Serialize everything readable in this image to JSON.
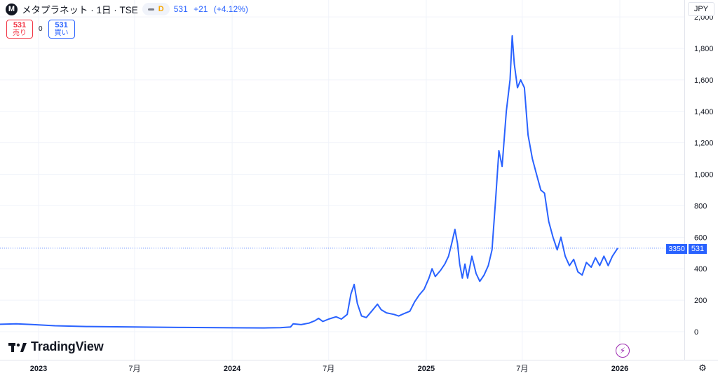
{
  "header": {
    "logo_letter": "M",
    "title": "メタプラネット · 1日 · TSE",
    "interval_badge": "D",
    "last": "531",
    "change": "+21",
    "change_pct": "(+4.12%)"
  },
  "trade": {
    "sell_price": "531",
    "sell_label": "売り",
    "spread": "0",
    "buy_price": "531",
    "buy_label": "買い"
  },
  "currency": "JPY",
  "last_volume_badge": "3350",
  "last_price_badge": "531",
  "watermark": "TradingView",
  "icons": {
    "logo": "tradingview-logo-icon",
    "bolt": "lightning-icon",
    "settings": "gear-icon"
  },
  "colors": {
    "line": "#2962ff",
    "sell": "#f23645",
    "buy": "#2962ff",
    "alert": "#9c27b0"
  },
  "chart_data": {
    "type": "line",
    "title": "メタプラネット · 1日 · TSE",
    "xlabel": "",
    "ylabel": "",
    "ylim": [
      -80,
      2000
    ],
    "grid": true,
    "y_ticks": [
      0,
      200,
      400,
      600,
      800,
      1000,
      1200,
      1400,
      1600,
      1800
    ],
    "y_tick_labels": [
      "0",
      "200",
      "400",
      "600",
      "800",
      "1,000",
      "1,200",
      "1,400",
      "1,600",
      "1,800"
    ],
    "y_top_partial_label": "2,000",
    "x_ticks": [
      {
        "label": "2023",
        "date": "2023-01",
        "major": true
      },
      {
        "label": "7月",
        "date": "2023-07",
        "major": false
      },
      {
        "label": "2024",
        "date": "2024-01",
        "major": true
      },
      {
        "label": "7月",
        "date": "2024-07",
        "major": false
      },
      {
        "label": "2025",
        "date": "2025-01",
        "major": true
      },
      {
        "label": "7月",
        "date": "2025-07",
        "major": false
      },
      {
        "label": "2026",
        "date": "2026-01",
        "major": true
      }
    ],
    "series": [
      {
        "color": "#2962ff",
        "points": [
          [
            "2022-09-15",
            45
          ],
          [
            "2022-10-15",
            47
          ],
          [
            "2022-11-20",
            50
          ],
          [
            "2022-12-20",
            46
          ],
          [
            "2023-02-01",
            38
          ],
          [
            "2023-04-01",
            33
          ],
          [
            "2023-07-01",
            30
          ],
          [
            "2023-10-01",
            27
          ],
          [
            "2024-01-01",
            25
          ],
          [
            "2024-03-01",
            24
          ],
          [
            "2024-04-01",
            26
          ],
          [
            "2024-04-20",
            30
          ],
          [
            "2024-04-25",
            50
          ],
          [
            "2024-05-10",
            45
          ],
          [
            "2024-05-25",
            55
          ],
          [
            "2024-06-05",
            70
          ],
          [
            "2024-06-12",
            85
          ],
          [
            "2024-06-20",
            65
          ],
          [
            "2024-07-01",
            80
          ],
          [
            "2024-07-15",
            95
          ],
          [
            "2024-07-25",
            80
          ],
          [
            "2024-08-05",
            110
          ],
          [
            "2024-08-12",
            240
          ],
          [
            "2024-08-18",
            300
          ],
          [
            "2024-08-24",
            180
          ],
          [
            "2024-09-01",
            100
          ],
          [
            "2024-09-10",
            90
          ],
          [
            "2024-09-20",
            130
          ],
          [
            "2024-10-01",
            175
          ],
          [
            "2024-10-08",
            140
          ],
          [
            "2024-10-18",
            120
          ],
          [
            "2024-11-01",
            110
          ],
          [
            "2024-11-10",
            100
          ],
          [
            "2024-11-20",
            115
          ],
          [
            "2024-12-01",
            130
          ],
          [
            "2024-12-10",
            190
          ],
          [
            "2024-12-18",
            230
          ],
          [
            "2024-12-28",
            270
          ],
          [
            "2025-01-06",
            340
          ],
          [
            "2025-01-12",
            400
          ],
          [
            "2025-01-18",
            350
          ],
          [
            "2025-01-28",
            390
          ],
          [
            "2025-02-05",
            430
          ],
          [
            "2025-02-12",
            480
          ],
          [
            "2025-02-18",
            560
          ],
          [
            "2025-02-24",
            650
          ],
          [
            "2025-03-01",
            560
          ],
          [
            "2025-03-05",
            430
          ],
          [
            "2025-03-10",
            340
          ],
          [
            "2025-03-15",
            430
          ],
          [
            "2025-03-20",
            340
          ],
          [
            "2025-03-28",
            480
          ],
          [
            "2025-04-05",
            370
          ],
          [
            "2025-04-12",
            320
          ],
          [
            "2025-04-20",
            360
          ],
          [
            "2025-04-28",
            420
          ],
          [
            "2025-05-05",
            520
          ],
          [
            "2025-05-12",
            850
          ],
          [
            "2025-05-18",
            1150
          ],
          [
            "2025-05-24",
            1050
          ],
          [
            "2025-06-01",
            1400
          ],
          [
            "2025-06-08",
            1600
          ],
          [
            "2025-06-12",
            1880
          ],
          [
            "2025-06-16",
            1700
          ],
          [
            "2025-06-22",
            1550
          ],
          [
            "2025-06-28",
            1600
          ],
          [
            "2025-07-05",
            1550
          ],
          [
            "2025-07-12",
            1250
          ],
          [
            "2025-07-20",
            1100
          ],
          [
            "2025-07-28",
            1000
          ],
          [
            "2025-08-05",
            900
          ],
          [
            "2025-08-12",
            880
          ],
          [
            "2025-08-20",
            700
          ],
          [
            "2025-08-28",
            600
          ],
          [
            "2025-09-05",
            520
          ],
          [
            "2025-09-12",
            600
          ],
          [
            "2025-09-20",
            480
          ],
          [
            "2025-09-28",
            420
          ],
          [
            "2025-10-06",
            460
          ],
          [
            "2025-10-14",
            380
          ],
          [
            "2025-10-22",
            360
          ],
          [
            "2025-10-30",
            440
          ],
          [
            "2025-11-08",
            410
          ],
          [
            "2025-11-16",
            470
          ],
          [
            "2025-11-24",
            420
          ],
          [
            "2025-12-02",
            480
          ],
          [
            "2025-12-10",
            420
          ],
          [
            "2025-12-18",
            480
          ],
          [
            "2025-12-28",
            531
          ]
        ]
      }
    ]
  }
}
